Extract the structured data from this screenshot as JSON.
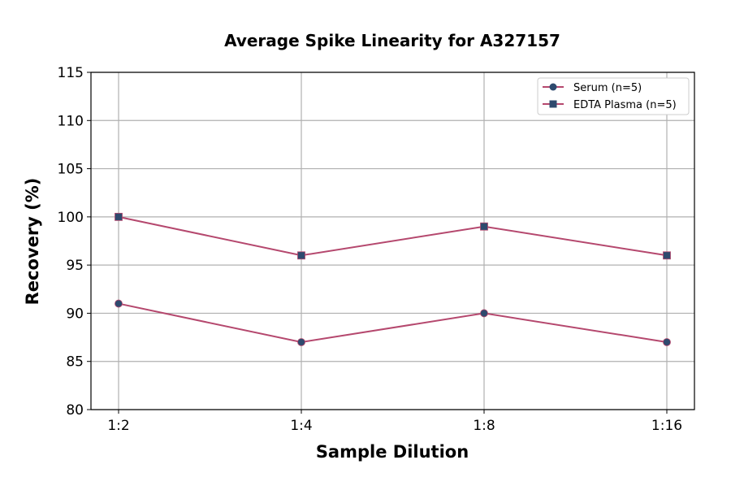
{
  "chart_data": {
    "type": "line",
    "title": "Average Spike Linearity for A327157",
    "xlabel": "Sample Dilution",
    "ylabel": "Recovery (%)",
    "categories": [
      "1:2",
      "1:4",
      "1:8",
      "1:16"
    ],
    "ylim": [
      80,
      115
    ],
    "yticks": [
      80,
      85,
      90,
      95,
      100,
      105,
      110,
      115
    ],
    "grid": true,
    "legend_position": "top-right",
    "series": [
      {
        "name": "Serum (n=5)",
        "marker": "circle",
        "values": [
          91,
          87,
          90,
          87
        ],
        "line_color": "#b5486e",
        "marker_color": "#2e4a6e"
      },
      {
        "name": "EDTA Plasma (n=5)",
        "marker": "square",
        "values": [
          100,
          96,
          99,
          96
        ],
        "line_color": "#b5486e",
        "marker_color": "#2e4a6e"
      }
    ]
  }
}
